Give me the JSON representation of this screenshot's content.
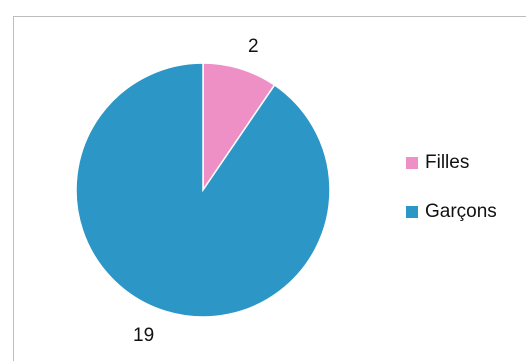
{
  "chart_data": {
    "type": "pie",
    "categories": [
      "Filles",
      "Garçons"
    ],
    "values": [
      2,
      19
    ],
    "colors": [
      "#ee8fc5",
      "#2c96c6"
    ],
    "data_labels": [
      "2",
      "19"
    ],
    "title": "",
    "legend_position": "right"
  }
}
